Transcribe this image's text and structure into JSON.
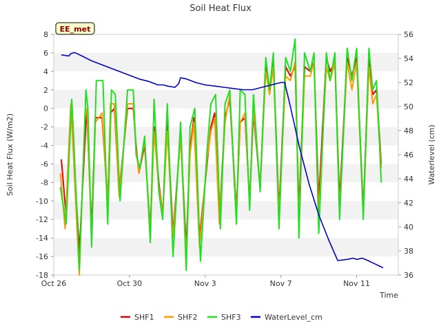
{
  "badge": "EE_met",
  "chart_data": {
    "type": "line",
    "title": "Soil Heat Flux",
    "xlabel": "Time",
    "ylabel": "Soil Heat Flux (W/m2)",
    "y2label": "Waterlevel (cm)",
    "x_ticks": [
      "Oct 26",
      "Oct 30",
      "Nov 3",
      "Nov 7",
      "Nov 11"
    ],
    "x_tick_days": [
      0,
      4,
      8,
      12,
      16
    ],
    "xlim": [
      0,
      18.2
    ],
    "ylim": [
      -18,
      8
    ],
    "y_ticks": [
      -18,
      -16,
      -14,
      -12,
      -10,
      -8,
      -6,
      -4,
      -2,
      0,
      2,
      4,
      6,
      8
    ],
    "y2lim": [
      36,
      56
    ],
    "y2_ticks": [
      36,
      38,
      40,
      42,
      44,
      46,
      48,
      50,
      52,
      54,
      56
    ],
    "legend_position": "bottom",
    "colors": {
      "SHF1": "#dd0000",
      "SHF2": "#ff9900",
      "SHF3": "#22dd22",
      "WaterLevel_cm": "#0000cc"
    },
    "series": [
      {
        "name": "SHF1",
        "axis": "left",
        "x": [
          0.4,
          0.65,
          0.9,
          1.0,
          1.35,
          1.7,
          1.75,
          2.0,
          2.2,
          2.55,
          2.85,
          3.0,
          3.2,
          3.45,
          3.9,
          4.2,
          4.35,
          4.5,
          4.8,
          5.1,
          5.3,
          5.55,
          5.75,
          6.0,
          6.3,
          6.7,
          7.0,
          7.2,
          7.4,
          7.7,
          8.1,
          8.3,
          8.5,
          8.75,
          9.05,
          9.3,
          9.65,
          9.85,
          10.1,
          10.35,
          10.55,
          10.9,
          11.2,
          11.4,
          11.6,
          11.9,
          12.25,
          12.5,
          12.75,
          12.95,
          13.25,
          13.55,
          13.75,
          14.0,
          14.4,
          14.6,
          14.85,
          15.1,
          15.5,
          15.75,
          16.0,
          16.35,
          16.65,
          16.85,
          17.05,
          17.3
        ],
        "values": [
          -5.5,
          -11.5,
          0.0,
          -3.0,
          -15.5,
          -1.5,
          -0.5,
          -13.0,
          -1.0,
          -1.0,
          -10.0,
          -0.5,
          0.0,
          -9.0,
          0.0,
          0.0,
          -4.0,
          -7.0,
          -4.0,
          -13.0,
          -2.0,
          -8.0,
          -11.5,
          -1.5,
          -13.5,
          -3.0,
          -15.0,
          -4.5,
          -1.0,
          -14.0,
          -6.0,
          -2.0,
          -0.5,
          -12.0,
          -1.0,
          1.0,
          -11.0,
          -1.5,
          -1.0,
          -10.0,
          -0.5,
          -8.5,
          5.0,
          2.0,
          5.0,
          -11.0,
          4.5,
          3.5,
          4.5,
          -11.0,
          4.5,
          4.0,
          5.0,
          -10.0,
          5.5,
          4.0,
          5.0,
          -10.0,
          5.5,
          3.5,
          5.5,
          -11.0,
          5.5,
          1.5,
          2.0,
          -6.0
        ]
      },
      {
        "name": "SHF2",
        "axis": "left",
        "x": [
          0.35,
          0.6,
          0.9,
          1.0,
          1.35,
          1.65,
          1.75,
          2.0,
          2.2,
          2.55,
          2.85,
          3.0,
          3.2,
          3.45,
          3.9,
          4.2,
          4.35,
          4.5,
          4.8,
          5.1,
          5.3,
          5.55,
          5.75,
          6.0,
          6.3,
          6.7,
          7.0,
          7.2,
          7.4,
          7.7,
          8.1,
          8.3,
          8.5,
          8.75,
          9.05,
          9.3,
          9.65,
          9.85,
          10.1,
          10.35,
          10.55,
          10.9,
          11.2,
          11.4,
          11.6,
          11.9,
          12.25,
          12.5,
          12.75,
          12.95,
          13.25,
          13.55,
          13.75,
          14.0,
          14.4,
          14.6,
          14.85,
          15.1,
          15.5,
          15.75,
          16.0,
          16.35,
          16.65,
          16.85,
          17.05,
          17.3
        ],
        "values": [
          -7.0,
          -13.0,
          0.5,
          -3.5,
          -18.0,
          -1.0,
          0.0,
          -14.0,
          -1.5,
          -0.5,
          -10.5,
          0.5,
          0.5,
          -9.5,
          0.5,
          0.5,
          -4.5,
          -7.0,
          -3.5,
          -13.5,
          -2.5,
          -8.5,
          -11.5,
          -2.5,
          -14.0,
          -3.0,
          -16.0,
          -5.0,
          -1.5,
          -15.0,
          -5.5,
          -2.5,
          -1.0,
          -12.5,
          -1.5,
          1.5,
          -11.5,
          -1.5,
          -0.5,
          -10.5,
          0.0,
          -8.5,
          4.0,
          1.5,
          4.5,
          -11.5,
          3.5,
          3.0,
          5.0,
          -12.0,
          3.5,
          3.5,
          5.0,
          -11.5,
          4.5,
          3.0,
          5.0,
          -11.0,
          5.0,
          2.0,
          5.0,
          -11.5,
          4.5,
          0.5,
          1.5,
          -6.5
        ]
      },
      {
        "name": "SHF3",
        "axis": "left",
        "x": [
          0.35,
          0.65,
          0.95,
          1.05,
          1.35,
          1.7,
          1.8,
          2.0,
          2.25,
          2.6,
          2.85,
          3.05,
          3.25,
          3.5,
          3.9,
          4.2,
          4.35,
          4.55,
          4.8,
          5.1,
          5.3,
          5.55,
          5.75,
          6.0,
          6.3,
          6.7,
          7.0,
          7.2,
          7.45,
          7.75,
          8.1,
          8.3,
          8.55,
          8.8,
          9.05,
          9.3,
          9.65,
          9.85,
          10.1,
          10.35,
          10.55,
          10.9,
          11.2,
          11.4,
          11.6,
          11.9,
          12.25,
          12.5,
          12.75,
          12.95,
          13.25,
          13.55,
          13.75,
          14.0,
          14.4,
          14.6,
          14.85,
          15.1,
          15.5,
          15.75,
          16.0,
          16.35,
          16.65,
          16.85,
          17.05,
          17.3
        ],
        "values": [
          -8.5,
          -12.5,
          1.0,
          -3.0,
          -17.5,
          2.0,
          0.0,
          -15.0,
          3.0,
          3.0,
          -12.5,
          2.0,
          1.5,
          -10.0,
          2.0,
          2.0,
          -5.0,
          -6.5,
          -3.0,
          -14.5,
          1.0,
          -9.0,
          -12.0,
          0.5,
          -16.0,
          -1.5,
          -17.5,
          -2.0,
          0.0,
          -16.5,
          -4.5,
          0.5,
          1.5,
          -13.0,
          0.5,
          2.0,
          -12.5,
          2.0,
          1.5,
          -11.0,
          1.5,
          -9.0,
          5.5,
          2.0,
          6.0,
          -13.0,
          5.5,
          4.0,
          7.5,
          -14.0,
          6.0,
          4.0,
          6.0,
          -13.5,
          6.0,
          3.0,
          6.0,
          -12.0,
          6.5,
          3.0,
          6.5,
          -12.0,
          6.5,
          2.0,
          3.0,
          -8.0
        ]
      },
      {
        "name": "WaterLevel_cm",
        "axis": "right",
        "x": [
          0.4,
          0.8,
          0.9,
          1.1,
          1.5,
          2.0,
          2.5,
          3.0,
          3.5,
          4.0,
          4.5,
          5.0,
          5.5,
          5.8,
          6.0,
          6.4,
          6.6,
          6.7,
          7.0,
          7.5,
          8.0,
          8.5,
          9.0,
          9.5,
          10.0,
          10.5,
          11.0,
          11.5,
          12.0,
          12.2,
          12.5,
          13.0,
          13.5,
          14.0,
          14.5,
          15.0,
          15.5,
          15.8,
          16.0,
          16.3,
          16.6,
          17.0,
          17.4
        ],
        "values": [
          54.3,
          54.2,
          54.4,
          54.5,
          54.2,
          53.8,
          53.5,
          53.2,
          52.9,
          52.6,
          52.3,
          52.1,
          51.8,
          51.8,
          51.7,
          51.6,
          51.9,
          52.4,
          52.3,
          52.0,
          51.8,
          51.7,
          51.6,
          51.5,
          51.4,
          51.4,
          51.6,
          51.8,
          52.0,
          52.0,
          50.0,
          46.5,
          43.5,
          41.0,
          39.0,
          37.2,
          37.3,
          37.4,
          37.3,
          37.4,
          37.2,
          36.9,
          36.6
        ]
      }
    ]
  }
}
